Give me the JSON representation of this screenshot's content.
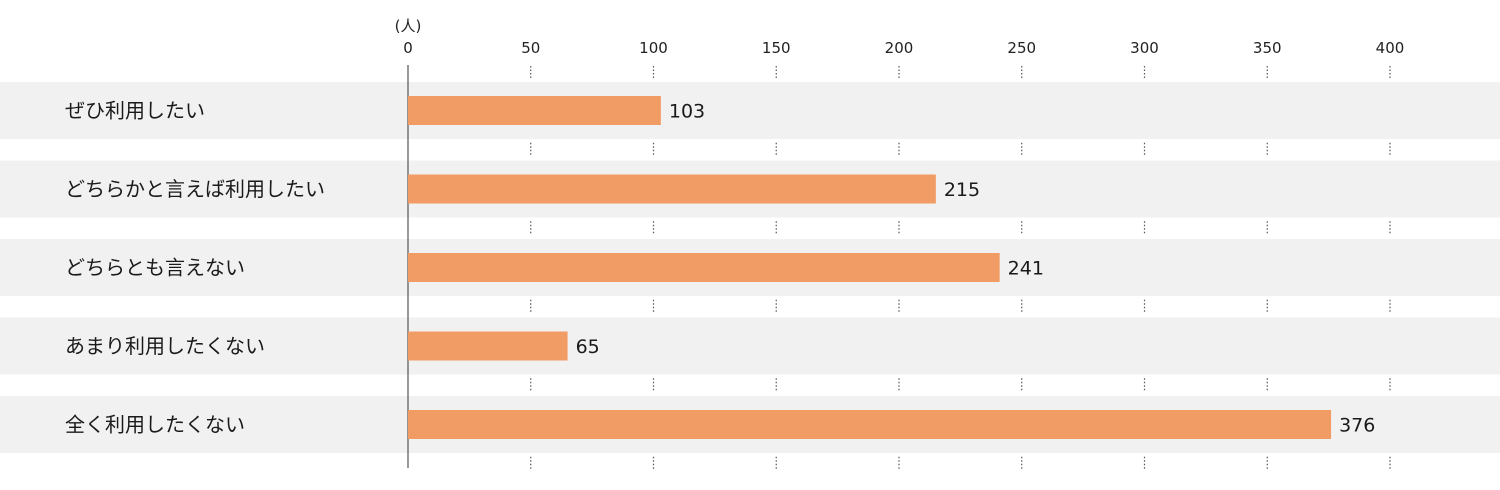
{
  "chart_data": {
    "type": "bar",
    "orientation": "horizontal",
    "unit": "(人)",
    "categories": [
      "ぜひ利用したい",
      "どちらかと言えば利用したい",
      "どちらとも言えない",
      "あまり利用したくない",
      "全く利用したくない"
    ],
    "values": [
      103,
      215,
      241,
      65,
      376
    ],
    "xlim": [
      0,
      400
    ],
    "ticks": [
      0,
      50,
      100,
      150,
      200,
      250,
      300,
      350,
      400
    ],
    "tick_labels": [
      "0",
      "50",
      "100",
      "150",
      "200",
      "250",
      "300",
      "350",
      "400"
    ],
    "value_labels": [
      "103",
      "215",
      "241",
      "65",
      "376"
    ],
    "grid": "dotted vertical",
    "colors": {
      "bar": "#f29c65",
      "row_band": "#f1f1f1",
      "axis": "#555555",
      "grid": "#555555"
    }
  }
}
